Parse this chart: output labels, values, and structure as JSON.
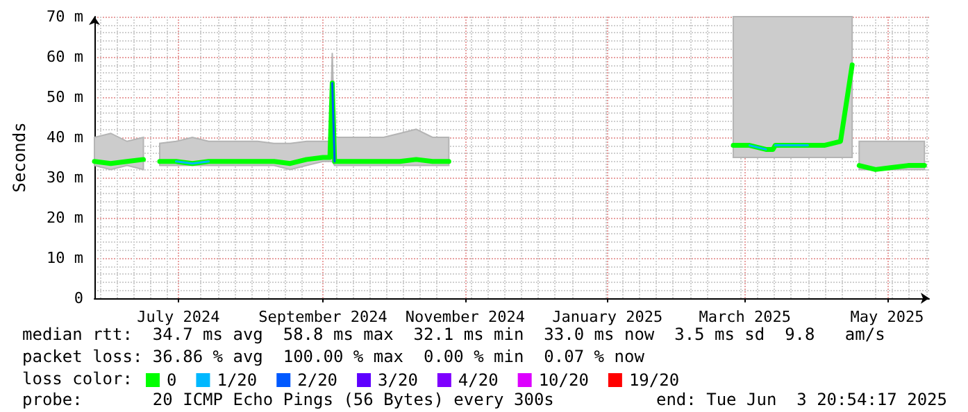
{
  "chart_data": {
    "type": "line",
    "ylabel": "Seconds",
    "legend_title": "loss color:",
    "legend": "bottom",
    "grid": true,
    "marker": "none",
    "line_style": "solid",
    "xlim": [
      "2024-05-26",
      "2025-05-19"
    ],
    "xticks": [
      {
        "value": "2024-07-01",
        "label": "July 2024"
      },
      {
        "value": "2024-09-01",
        "label": "September 2024"
      },
      {
        "value": "2024-11-01",
        "label": "November 2024"
      },
      {
        "value": "2025-01-01",
        "label": "January 2025"
      },
      {
        "value": "2025-03-01",
        "label": "March 2025"
      },
      {
        "value": "2025-05-01",
        "label": "May 2025"
      }
    ],
    "ylim": [
      0,
      70
    ],
    "yticks": [
      0,
      {
        "value": 10,
        "label": "10 m"
      },
      {
        "value": 20,
        "label": "20 m"
      },
      {
        "value": 30,
        "label": "30 m"
      },
      {
        "value": 40,
        "label": "40 m"
      },
      {
        "value": 50,
        "label": "50 m"
      },
      {
        "value": 60,
        "label": "60 m"
      },
      {
        "value": 70,
        "label": "70 m"
      }
    ],
    "x": [
      "2024-05-26",
      "2024-06-02",
      "2024-06-09",
      "2024-06-16",
      "2024-06-20",
      "2024-06-23",
      "2024-06-30",
      "2024-07-07",
      "2024-07-14",
      "2024-07-21",
      "2024-07-28",
      "2024-08-04",
      "2024-08-11",
      "2024-08-18",
      "2024-08-25",
      "2024-09-01",
      "2024-09-04",
      "2024-09-05",
      "2024-09-06",
      "2024-09-13",
      "2024-09-20",
      "2024-09-27",
      "2024-10-04",
      "2024-10-11",
      "2024-10-18",
      "2024-10-25",
      "2024-11-01",
      "2025-02-22",
      "2025-02-24",
      "2025-03-03",
      "2025-03-10",
      "2025-03-13",
      "2025-03-14",
      "2025-03-21",
      "2025-03-28",
      "2025-04-04",
      "2025-04-11",
      "2025-04-16",
      "2025-04-17",
      "2025-04-19",
      "2025-04-26",
      "2025-05-03",
      "2025-05-10",
      "2025-05-17"
    ],
    "series": [
      {
        "name": "0",
        "color": "#00ff00",
        "values": [
          34,
          33.5,
          34,
          34.5,
          null,
          34,
          34,
          33.5,
          34,
          34,
          34,
          34,
          34,
          33.5,
          34.5,
          35,
          35,
          53.5,
          34,
          34,
          34,
          34,
          34,
          34.5,
          34,
          34,
          null,
          null,
          38,
          38,
          37,
          37,
          38,
          38,
          38,
          38,
          39,
          58,
          null,
          33,
          32,
          32.5,
          33,
          33
        ],
        "lower": [
          33,
          32,
          33,
          32,
          null,
          33,
          33,
          33,
          33,
          33,
          33,
          33,
          33,
          32,
          33,
          34,
          34,
          34,
          33,
          33,
          33,
          33,
          33,
          33,
          33,
          33,
          null,
          null,
          35,
          35,
          35,
          35,
          35,
          35,
          35,
          35,
          35,
          35,
          null,
          32,
          32,
          32,
          32,
          32
        ],
        "upper": [
          40,
          41,
          39,
          40,
          null,
          38.5,
          39,
          40,
          39,
          39,
          39,
          39,
          38.5,
          38.5,
          39,
          39,
          39,
          61,
          40,
          40,
          40,
          40,
          41,
          42,
          40,
          40,
          null,
          null,
          70,
          70,
          70,
          70,
          70,
          70,
          70,
          70,
          70,
          70,
          null,
          39,
          39,
          39,
          39,
          39
        ]
      },
      {
        "name": "1/20",
        "color": "#00b8ff",
        "values": [
          null,
          null,
          null,
          null,
          null,
          null,
          34,
          33.5,
          34,
          null,
          null,
          null,
          null,
          null,
          null,
          null,
          null,
          null,
          null,
          null,
          null,
          null,
          null,
          null,
          null,
          null,
          null,
          null,
          null,
          38,
          37,
          null,
          38,
          38,
          38,
          null,
          null,
          null,
          null,
          null,
          null,
          null,
          null,
          null
        ]
      },
      {
        "name": "2/20",
        "color": "#0059ff",
        "values": [
          null,
          null,
          null,
          null,
          null,
          null,
          null,
          null,
          null,
          null,
          null,
          null,
          null,
          null,
          null,
          null,
          null,
          53.5,
          34,
          null,
          null,
          null,
          null,
          null,
          null,
          null,
          null,
          null,
          null,
          null,
          null,
          null,
          null,
          null,
          null,
          null,
          null,
          null,
          null,
          null,
          null,
          null,
          null,
          null
        ]
      },
      {
        "name": "3/20",
        "color": "#5e00ff",
        "values": [
          null,
          null,
          null,
          null,
          null,
          null,
          null,
          null,
          null,
          null,
          null,
          null,
          null,
          null,
          null,
          null,
          null,
          null,
          null,
          null,
          null,
          null,
          null,
          null,
          null,
          null,
          null,
          null,
          null,
          null,
          null,
          null,
          null,
          null,
          null,
          null,
          null,
          null,
          null,
          null,
          null,
          null,
          null,
          null
        ]
      },
      {
        "name": "4/20",
        "color": "#7e00ff",
        "values": [
          null,
          null,
          null,
          null,
          null,
          null,
          null,
          null,
          null,
          null,
          null,
          null,
          null,
          null,
          null,
          null,
          null,
          null,
          null,
          null,
          null,
          null,
          null,
          null,
          null,
          null,
          null,
          null,
          null,
          null,
          null,
          null,
          null,
          null,
          null,
          null,
          null,
          null,
          null,
          null,
          null,
          null,
          null,
          null
        ]
      },
      {
        "name": "10/20",
        "color": "#dd00ff",
        "values": [
          null,
          null,
          null,
          null,
          null,
          null,
          null,
          null,
          null,
          null,
          null,
          null,
          null,
          null,
          null,
          null,
          null,
          null,
          null,
          null,
          null,
          null,
          null,
          null,
          null,
          null,
          null,
          null,
          null,
          null,
          null,
          null,
          null,
          null,
          null,
          null,
          null,
          null,
          null,
          null,
          null,
          null,
          null,
          null
        ]
      },
      {
        "name": "19/20",
        "color": "#ff0000",
        "values": [
          null,
          null,
          null,
          null,
          null,
          null,
          null,
          null,
          null,
          null,
          null,
          null,
          null,
          null,
          null,
          null,
          null,
          null,
          null,
          null,
          null,
          null,
          null,
          null,
          null,
          null,
          null,
          null,
          null,
          null,
          null,
          null,
          null,
          null,
          null,
          null,
          null,
          null,
          null,
          null,
          null,
          null,
          null,
          null
        ]
      }
    ],
    "annotations": [
      "median rtt:  34.7 ms avg  58.8 ms max  32.1 ms min  33.0 ms now  3.5 ms sd  9.8   am/s",
      "packet loss: 36.86 % avg  100.00 % max  0.00 % min  0.07 % now",
      "probe:       20 ICMP Echo Pings (56 Bytes) every 300s",
      "end: Tue Jun  3 20:54:17 2025"
    ]
  }
}
